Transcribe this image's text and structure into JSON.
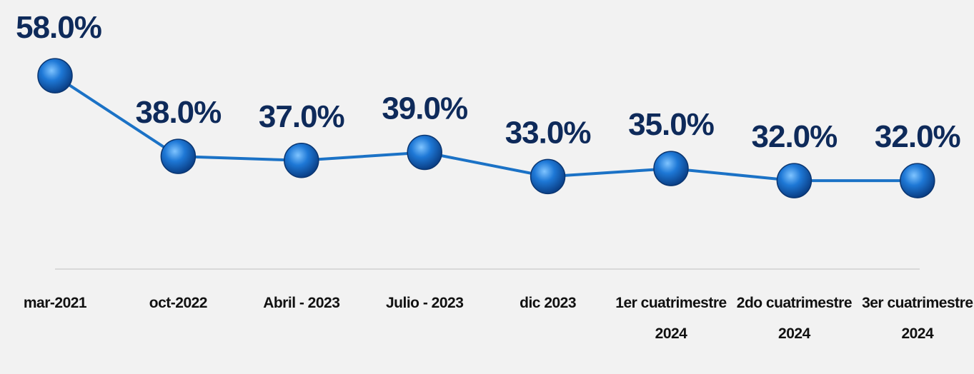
{
  "chart_data": {
    "type": "line",
    "categories": [
      "mar-2021",
      "oct-2022",
      "Abril - 2023",
      "Julio - 2023",
      "dic 2023",
      "1er cuatrimestre 2024",
      "2do cuatrimestre 2024",
      "3er cuatrimestre 2024"
    ],
    "values": [
      58,
      38,
      37,
      39,
      33,
      35,
      32,
      32
    ],
    "value_labels": [
      "58.0%",
      "38.0%",
      "37.0%",
      "39.0%",
      "33.0%",
      "35.0%",
      "32.0%",
      "32.0%"
    ],
    "color": "#1b72c6"
  }
}
